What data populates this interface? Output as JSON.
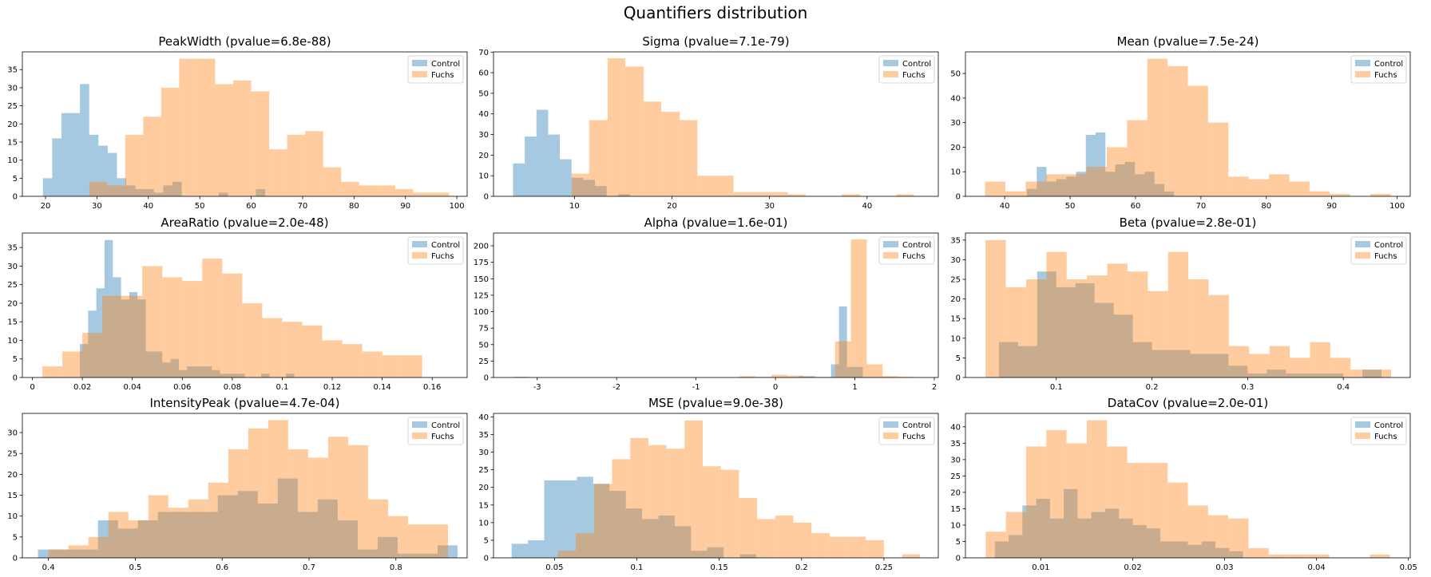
{
  "figure": {
    "title": "Quantifiers distribution"
  },
  "colors": {
    "control": "#1f77b4",
    "fuchs": "#ff7f0e",
    "alpha": 0.4
  },
  "chart_data": [
    {
      "type": "bar",
      "title": "PeakWidth (pvalue=6.8e-88)",
      "xlim": [
        15.5,
        102
      ],
      "ylim": [
        0,
        39.9
      ],
      "xticks": [
        20,
        30,
        40,
        50,
        60,
        70,
        80,
        90,
        100
      ],
      "yticks": [
        0,
        5,
        10,
        15,
        20,
        25,
        30,
        35
      ],
      "legend": "top-right",
      "legend_entries": [
        "Control",
        "Fuchs"
      ],
      "series": [
        {
          "name": "Control",
          "edges": [
            19.5,
            21.3,
            23.1,
            24.9,
            26.7,
            28.5,
            30.3,
            32.1,
            33.9,
            35.7,
            37.5,
            39.3,
            41.1,
            42.9,
            44.7,
            46.5,
            48.3,
            50.1,
            51.9,
            53.7,
            55.5,
            57.3,
            59.1,
            60.9,
            62.7,
            64.5,
            66.3
          ],
          "values": [
            5,
            16,
            23,
            23,
            31,
            17,
            14,
            12,
            5,
            3,
            2,
            2,
            1,
            3,
            4,
            0,
            0,
            0,
            0,
            1,
            0,
            0,
            0,
            2,
            0,
            0
          ]
        },
        {
          "name": "Fuchs",
          "edges": [
            28.5,
            32,
            35.5,
            39,
            42.5,
            46,
            49.5,
            53,
            56.5,
            60,
            63.5,
            67,
            70.5,
            74,
            77.5,
            81,
            84.5,
            88,
            91.5,
            95,
            98.5
          ],
          "values": [
            4,
            3,
            17,
            22,
            30,
            38,
            38,
            31,
            32,
            29,
            13,
            17,
            18,
            8,
            4,
            3,
            3,
            2,
            1,
            1
          ]
        }
      ]
    },
    {
      "type": "bar",
      "title": "Sigma (pvalue=7.1e-79)",
      "xlim": [
        1.7,
        47.3
      ],
      "ylim": [
        0,
        70.1
      ],
      "xticks": [
        10,
        20,
        30,
        40
      ],
      "yticks": [
        0,
        10,
        20,
        30,
        40,
        50,
        60,
        70
      ],
      "legend": "top-right",
      "legend_entries": [
        "Control",
        "Fuchs"
      ],
      "series": [
        {
          "name": "Control",
          "edges": [
            3.7,
            4.9,
            6.1,
            7.3,
            8.5,
            9.7,
            10.9,
            12.1,
            13.3,
            14.5,
            15.7
          ],
          "values": [
            16,
            29,
            42,
            30,
            18,
            9,
            8,
            5,
            0,
            1
          ]
        },
        {
          "name": "Fuchs",
          "edges": [
            9.7,
            11.5,
            13.4,
            15.2,
            17.1,
            18.9,
            20.8,
            22.6,
            24.5,
            26.3,
            28.2,
            30,
            31.9,
            33.7,
            35.6,
            37.4,
            39.3,
            41.1,
            43,
            44.8
          ],
          "values": [
            11,
            37,
            67,
            63,
            46,
            41,
            37,
            10,
            10,
            2,
            2,
            2,
            1,
            0,
            0,
            1,
            0,
            0,
            1
          ]
        }
      ]
    },
    {
      "type": "bar",
      "title": "Mean (pvalue=7.5e-24)",
      "xlim": [
        34,
        102
      ],
      "ylim": [
        0,
        58.8
      ],
      "xticks": [
        40,
        50,
        60,
        70,
        80,
        90,
        100
      ],
      "yticks": [
        0,
        10,
        20,
        30,
        40,
        50
      ],
      "legend": "top-right",
      "legend_entries": [
        "Control",
        "Fuchs"
      ],
      "series": [
        {
          "name": "Control",
          "edges": [
            43.4,
            44.9,
            46.4,
            47.9,
            49.4,
            50.9,
            52.4,
            53.9,
            55.4,
            56.9,
            58.4,
            59.9,
            61.4,
            62.9,
            64.4,
            65.9
          ],
          "values": [
            3,
            12,
            6,
            7,
            8,
            10,
            25,
            26,
            10,
            13,
            14,
            9,
            10,
            5,
            2
          ]
        },
        {
          "name": "Fuchs",
          "edges": [
            37,
            40.1,
            43.2,
            46.3,
            49.4,
            52.5,
            55.6,
            58.7,
            61.8,
            64.9,
            68,
            71.1,
            74.2,
            77.3,
            80.4,
            83.5,
            86.6,
            89.7,
            92.8,
            95.9,
            99
          ],
          "values": [
            6,
            2,
            6,
            9,
            9,
            12,
            20,
            31,
            56,
            53,
            45,
            30,
            8,
            7,
            9,
            6,
            2,
            1,
            0,
            1
          ]
        }
      ]
    },
    {
      "type": "bar",
      "title": "AreaRatio (pvalue=2.0e-48)",
      "xlim": [
        -0.004,
        0.174
      ],
      "ylim": [
        0,
        38.9
      ],
      "xticks": [
        0,
        0.02,
        0.04,
        0.06,
        0.08,
        0.1,
        0.12,
        0.14,
        0.16
      ],
      "yticks": [
        0,
        5,
        10,
        15,
        20,
        25,
        30,
        35
      ],
      "legend": "top-right",
      "legend_entries": [
        "Control",
        "Fuchs"
      ],
      "series": [
        {
          "name": "Control",
          "edges": [
            0.019,
            0.0223,
            0.0256,
            0.0289,
            0.0322,
            0.0355,
            0.0388,
            0.0421,
            0.0454,
            0.0487,
            0.052,
            0.0553,
            0.0586,
            0.0619,
            0.0652,
            0.0685,
            0.0718,
            0.0751,
            0.0784,
            0.0817,
            0.085,
            0.0883,
            0.0916,
            0.0949,
            0.0982,
            0.1015,
            0.1048
          ],
          "values": [
            9,
            18,
            24,
            37,
            27,
            21,
            23,
            21,
            7,
            7,
            4,
            5,
            2,
            3,
            3,
            3,
            2,
            1,
            1,
            1,
            0,
            0,
            1,
            0,
            0,
            1
          ]
        },
        {
          "name": "Fuchs",
          "edges": [
            0.004,
            0.012,
            0.02,
            0.028,
            0.036,
            0.044,
            0.052,
            0.06,
            0.068,
            0.076,
            0.084,
            0.092,
            0.1,
            0.108,
            0.116,
            0.124,
            0.132,
            0.14,
            0.148,
            0.156,
            0.164
          ],
          "values": [
            3,
            7,
            12,
            22,
            22,
            30,
            27,
            26,
            32,
            28,
            20,
            16,
            15,
            14,
            10,
            9,
            7,
            6,
            6,
            0,
            4
          ]
        }
      ]
    },
    {
      "type": "bar",
      "title": "Alpha (pvalue=1.6e-01)",
      "xlim": [
        -3.55,
        2.05
      ],
      "ylim": [
        0,
        219.5
      ],
      "xticks": [
        -3,
        -2,
        -1,
        0,
        1,
        2
      ],
      "yticks": [
        0,
        25,
        50,
        75,
        100,
        125,
        150,
        175,
        200
      ],
      "legend": "top-right",
      "legend_entries": [
        "Control",
        "Fuchs"
      ],
      "series": [
        {
          "name": "Control",
          "edges": [
            -3.3,
            -3.1,
            -2.9,
            -2.7,
            -2.5,
            -2.3,
            -2.1,
            -1.9,
            -1.7,
            -1.5,
            -1.3,
            -1.1,
            -0.9,
            -0.7,
            -0.5,
            -0.3,
            -0.1,
            0.1,
            0.3,
            0.5,
            0.7,
            0.8,
            0.9,
            1.1
          ],
          "values": [
            1,
            0,
            0,
            0,
            0,
            0,
            0,
            0,
            0,
            0,
            0,
            0,
            0,
            0,
            0,
            0,
            0,
            0,
            2,
            0,
            20,
            108,
            16,
            3
          ]
        },
        {
          "name": "Fuchs",
          "edges": [
            -0.45,
            -0.25,
            -0.05,
            0.15,
            0.35,
            0.55,
            0.75,
            0.95,
            1.15,
            1.35,
            1.55,
            1.75
          ],
          "values": [
            2,
            1,
            4,
            3,
            1,
            1,
            55,
            210,
            20,
            2,
            1,
            1
          ]
        }
      ]
    },
    {
      "type": "bar",
      "title": "Beta (pvalue=2.8e-01)",
      "xlim": [
        0.005,
        0.47
      ],
      "ylim": [
        0,
        36.8
      ],
      "xticks": [
        0.1,
        0.2,
        0.3,
        0.4
      ],
      "yticks": [
        0,
        5,
        10,
        15,
        20,
        25,
        30,
        35
      ],
      "legend": "top-right",
      "legend_entries": [
        "Control",
        "Fuchs"
      ],
      "series": [
        {
          "name": "Control",
          "edges": [
            0.04,
            0.06,
            0.08,
            0.1,
            0.12,
            0.14,
            0.16,
            0.18,
            0.2,
            0.22,
            0.24,
            0.26,
            0.28,
            0.3,
            0.32,
            0.34,
            0.36,
            0.38,
            0.4,
            0.42,
            0.44
          ],
          "values": [
            9,
            8,
            27,
            23,
            24,
            19,
            16,
            9,
            7,
            7,
            6,
            6,
            3,
            1,
            2,
            1,
            1,
            1,
            0,
            2
          ]
        },
        {
          "name": "Fuchs",
          "edges": [
            0.026,
            0.0472,
            0.0684,
            0.0896,
            0.1108,
            0.132,
            0.1532,
            0.1744,
            0.1956,
            0.2168,
            0.238,
            0.2592,
            0.2804,
            0.3016,
            0.3228,
            0.344,
            0.3652,
            0.3864,
            0.4076,
            0.4288,
            0.45
          ],
          "values": [
            35,
            23,
            25,
            32,
            25,
            26,
            29,
            27,
            22,
            32,
            25,
            21,
            8,
            6,
            8,
            5,
            9,
            5,
            2,
            2
          ]
        }
      ]
    },
    {
      "type": "bar",
      "title": "IntensityPeak (pvalue=4.7e-04)",
      "xlim": [
        0.37,
        0.882
      ],
      "ylim": [
        0,
        34.6
      ],
      "xticks": [
        0.4,
        0.5,
        0.6,
        0.7,
        0.8
      ],
      "yticks": [
        0,
        5,
        10,
        15,
        20,
        25,
        30
      ],
      "legend": "top-right",
      "legend_entries": [
        "Control",
        "Fuchs"
      ],
      "series": [
        {
          "name": "Control",
          "edges": [
            0.388,
            0.411,
            0.434,
            0.457,
            0.48,
            0.503,
            0.526,
            0.549,
            0.572,
            0.595,
            0.618,
            0.641,
            0.664,
            0.687,
            0.71,
            0.733,
            0.756,
            0.779,
            0.802,
            0.825,
            0.848,
            0.871
          ],
          "values": [
            2,
            2,
            2,
            9,
            7,
            9,
            11,
            11,
            11,
            15,
            16,
            13,
            19,
            11,
            14,
            9,
            2,
            5,
            1,
            1,
            3
          ]
        },
        {
          "name": "Fuchs",
          "edges": [
            0.4,
            0.423,
            0.446,
            0.469,
            0.492,
            0.515,
            0.538,
            0.561,
            0.584,
            0.607,
            0.63,
            0.653,
            0.676,
            0.699,
            0.722,
            0.745,
            0.768,
            0.791,
            0.814,
            0.837,
            0.86
          ],
          "values": [
            2,
            3,
            5,
            11,
            9,
            15,
            12,
            14,
            18,
            26,
            31,
            33,
            26,
            24,
            29,
            27,
            14,
            10,
            8,
            8
          ]
        }
      ]
    },
    {
      "type": "bar",
      "title": "MSE (pvalue=9.0e-38)",
      "xlim": [
        0.013,
        0.283
      ],
      "ylim": [
        0,
        41.0
      ],
      "xticks": [
        0.05,
        0.1,
        0.15,
        0.2,
        0.25
      ],
      "yticks": [
        0,
        5,
        10,
        15,
        20,
        25,
        30,
        35,
        40
      ],
      "legend": "top-right",
      "legend_entries": [
        "Control",
        "Fuchs"
      ],
      "series": [
        {
          "name": "Control",
          "edges": [
            0.024,
            0.0339,
            0.0438,
            0.0537,
            0.0636,
            0.0735,
            0.0834,
            0.0933,
            0.1032,
            0.1131,
            0.123,
            0.1329,
            0.1428,
            0.1527,
            0.1626,
            0.1725
          ],
          "values": [
            4,
            5,
            22,
            22,
            23,
            21,
            19,
            14,
            11,
            12,
            9,
            2,
            3,
            0,
            1
          ]
        },
        {
          "name": "Fuchs",
          "edges": [
            0.052,
            0.063,
            0.074,
            0.085,
            0.096,
            0.107,
            0.118,
            0.129,
            0.14,
            0.151,
            0.162,
            0.173,
            0.184,
            0.195,
            0.206,
            0.217,
            0.228,
            0.239,
            0.25,
            0.261,
            0.272
          ],
          "values": [
            2,
            7,
            21,
            28,
            34,
            32,
            31,
            39,
            26,
            25,
            17,
            11,
            12,
            10,
            7,
            6,
            6,
            5,
            0,
            1
          ]
        }
      ]
    },
    {
      "type": "bar",
      "title": "DataCov (pvalue=2.0e-01)",
      "xlim": [
        0.0018,
        0.0502
      ],
      "ylim": [
        0,
        44.1
      ],
      "xticks": [
        0.01,
        0.02,
        0.03,
        0.04,
        0.05
      ],
      "yticks": [
        0,
        5,
        10,
        15,
        20,
        25,
        30,
        35,
        40
      ],
      "legend": "top-right",
      "legend_entries": [
        "Control",
        "Fuchs"
      ],
      "series": [
        {
          "name": "Control",
          "edges": [
            0.005,
            0.0065,
            0.008,
            0.0095,
            0.011,
            0.0125,
            0.014,
            0.0155,
            0.017,
            0.0185,
            0.02,
            0.0215,
            0.023,
            0.0245,
            0.026,
            0.0275,
            0.029,
            0.0305,
            0.032
          ],
          "values": [
            5,
            7,
            16,
            18,
            12,
            21,
            12,
            14,
            15,
            12,
            10,
            9,
            5,
            5,
            4,
            5,
            3,
            2
          ]
        },
        {
          "name": "Fuchs",
          "edges": [
            0.004,
            0.0062,
            0.0084,
            0.0106,
            0.0128,
            0.015,
            0.0172,
            0.0194,
            0.0216,
            0.0238,
            0.026,
            0.0282,
            0.0304,
            0.0326,
            0.0348,
            0.037,
            0.0392,
            0.0414,
            0.0436,
            0.0458,
            0.048
          ],
          "values": [
            8,
            14,
            34,
            39,
            35,
            42,
            34,
            29,
            29,
            23,
            16,
            13,
            12,
            3,
            1,
            1,
            1,
            0,
            0,
            1
          ]
        }
      ]
    }
  ]
}
